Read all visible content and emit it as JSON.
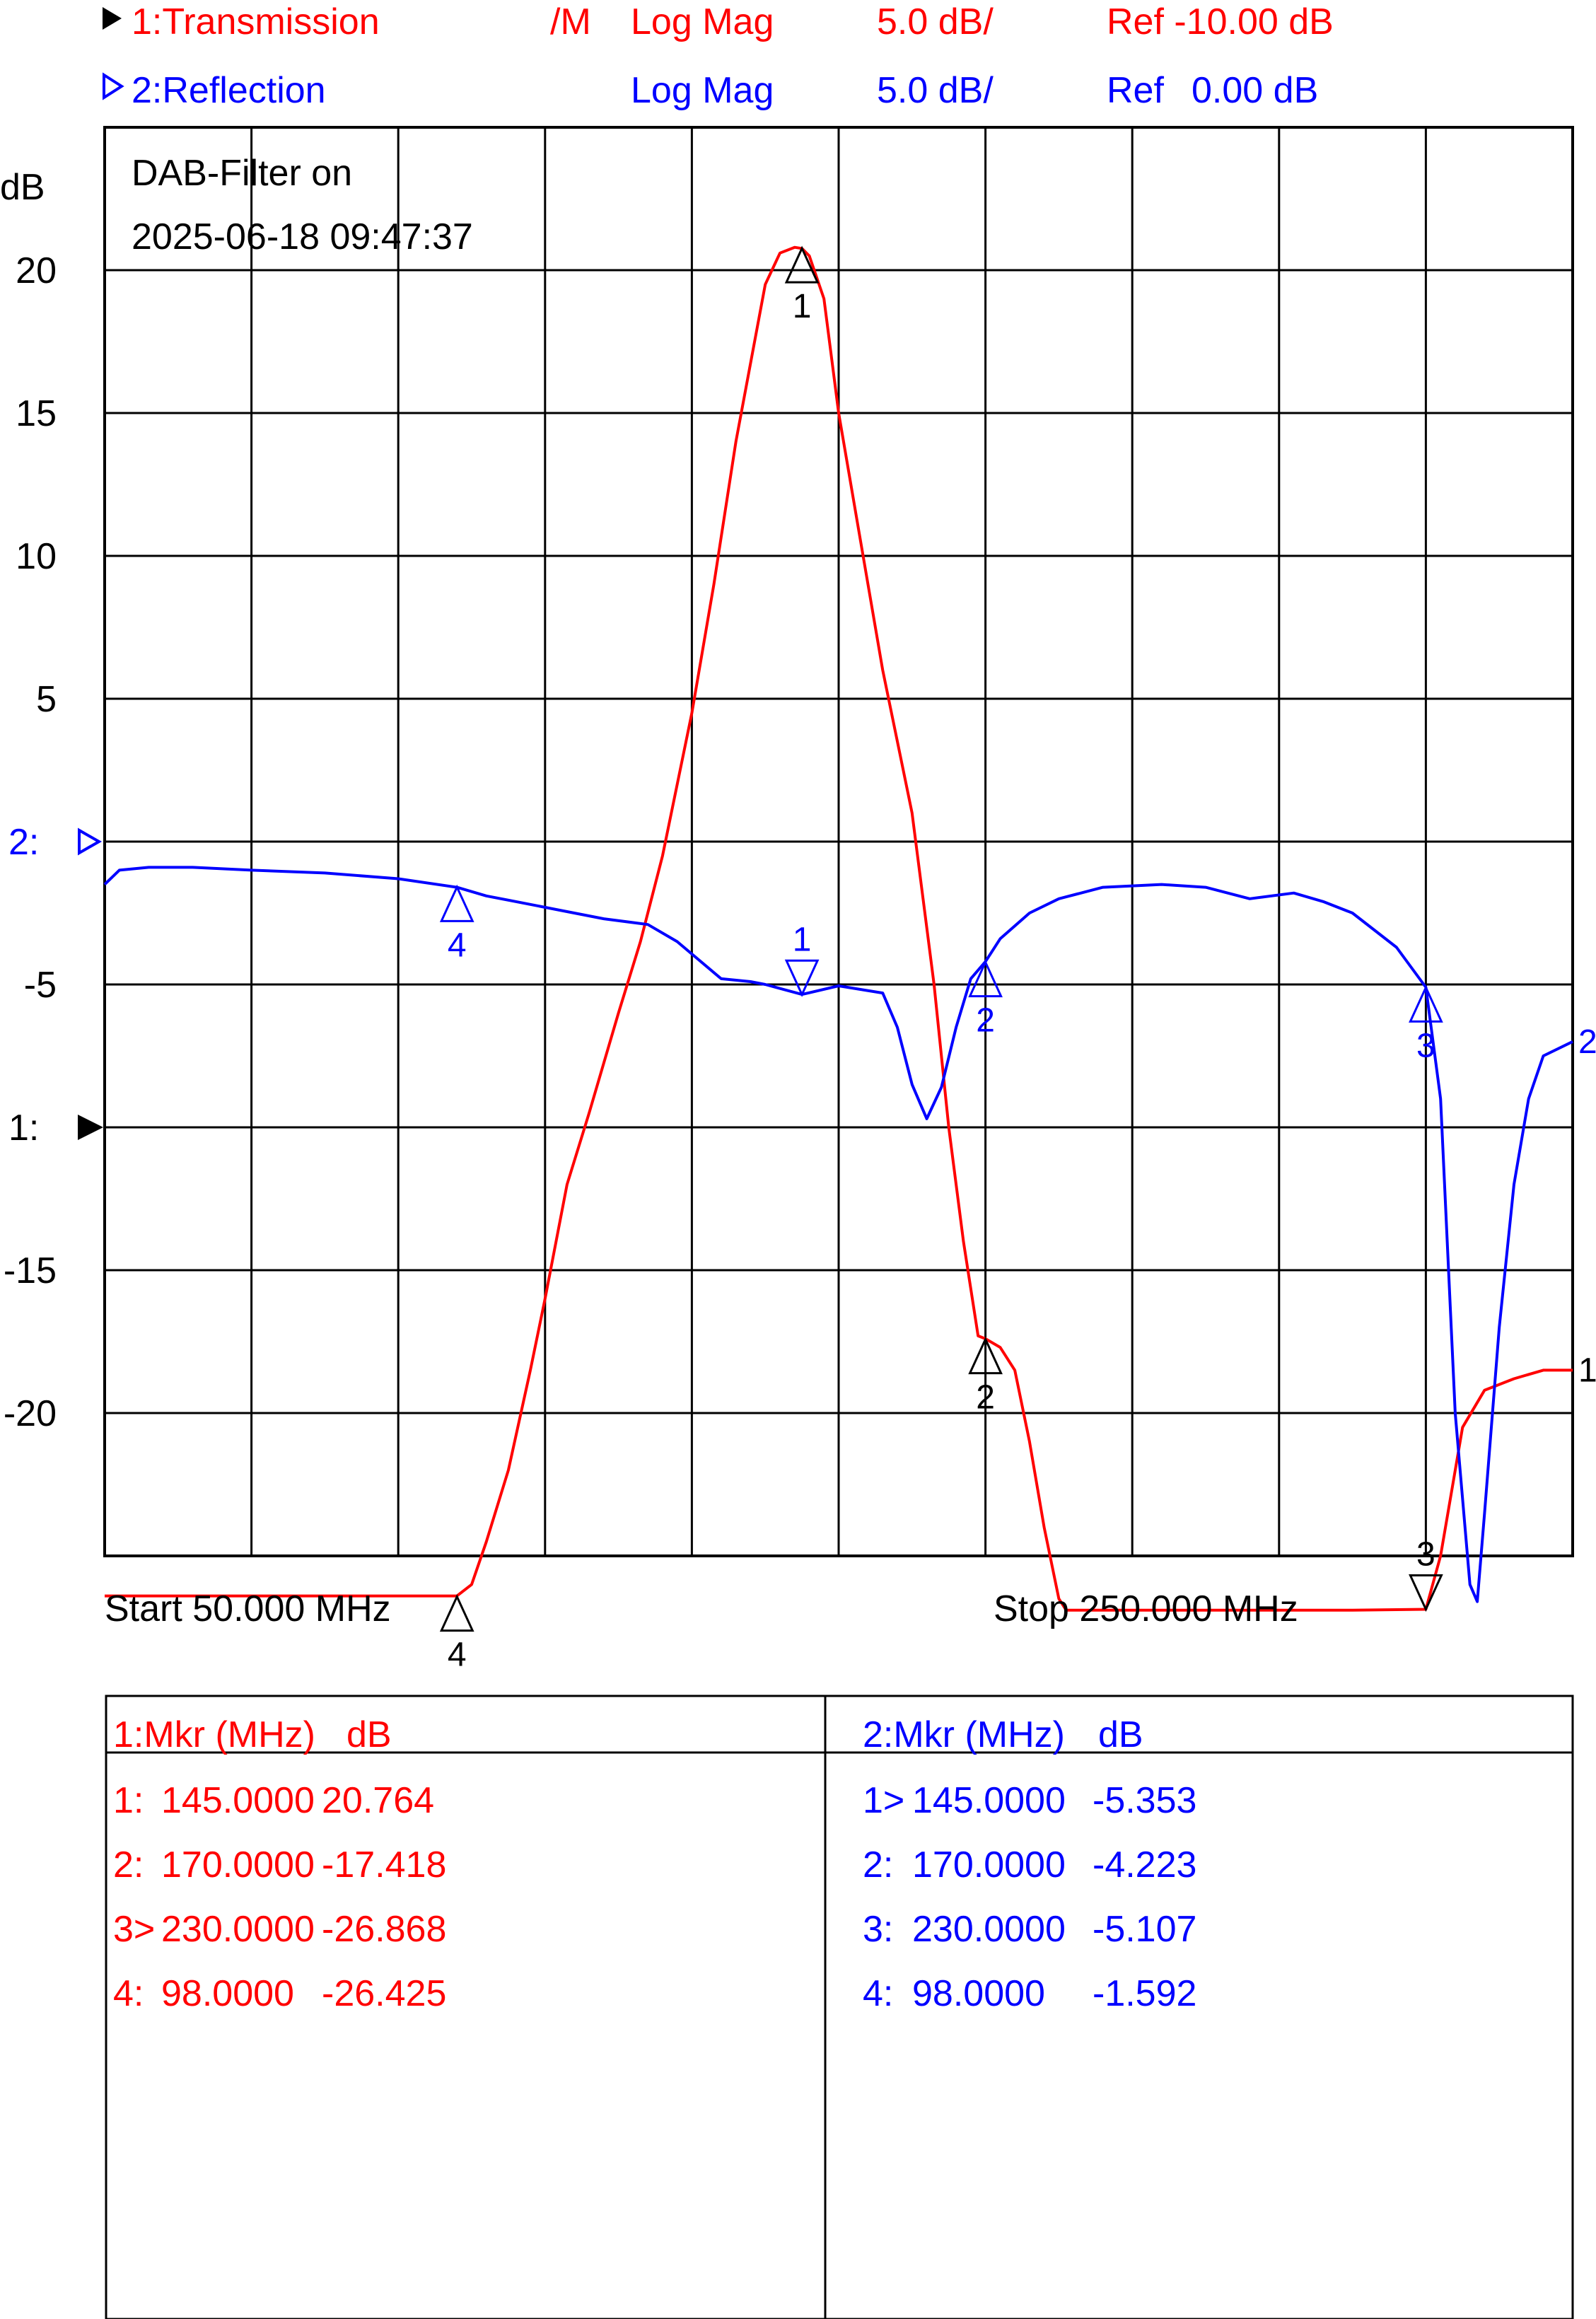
{
  "header": {
    "trace1": {
      "label": "1:Transmission",
      "flag": "/M",
      "format": "Log Mag",
      "scale": "5.0 dB/",
      "ref": "Ref -10.00 dB"
    },
    "trace2": {
      "label": "2:Reflection",
      "format": "Log Mag",
      "scale": "5.0 dB/",
      "ref_prefix": "Ref",
      "ref_value": "0.00 dB"
    }
  },
  "annotation": {
    "line1": "DAB-Filter on",
    "line2": "2025-06-18 09:47:37"
  },
  "start_label": "Start 50.000 MHz",
  "stop_label": "Stop 250.000 MHz",
  "colors": {
    "trace1": "#ff0000",
    "trace2": "#0000ff",
    "grid": "#000000"
  },
  "marker_table": {
    "trace1": {
      "header_mkr": "1:Mkr (MHz)",
      "header_unit": "dB",
      "rows": [
        {
          "id": "1:",
          "freq": "145.0000",
          "value": "20.764"
        },
        {
          "id": "2:",
          "freq": "170.0000",
          "value": "-17.418"
        },
        {
          "id": "3>",
          "freq": "230.0000",
          "value": "-26.868"
        },
        {
          "id": "4:",
          "freq": "98.0000",
          "value": "-26.425"
        }
      ]
    },
    "trace2": {
      "header_mkr": "2:Mkr (MHz)",
      "header_unit": "dB",
      "rows": [
        {
          "id": "1>",
          "freq": "145.0000",
          "value": "-5.353"
        },
        {
          "id": "2:",
          "freq": "170.0000",
          "value": "-4.223"
        },
        {
          "id": "3:",
          "freq": "230.0000",
          "value": "-5.107"
        },
        {
          "id": "4:",
          "freq": "98.0000",
          "value": "-1.592"
        }
      ]
    }
  },
  "chart_data": {
    "type": "line",
    "xlim": [
      50,
      250
    ],
    "ylim": [
      -25,
      25
    ],
    "grid": true,
    "ylabel": "dB",
    "yticks": [
      {
        "value": 20,
        "label": "20"
      },
      {
        "value": 15,
        "label": "15"
      },
      {
        "value": 10,
        "label": "10"
      },
      {
        "value": 5,
        "label": "5"
      },
      {
        "value": -5,
        "label": "-5"
      },
      {
        "value": -15,
        "label": "-15"
      },
      {
        "value": -20,
        "label": "-20"
      }
    ],
    "ref_labels": [
      {
        "trace": "trace2",
        "label": "2:",
        "value": 0
      },
      {
        "trace": "trace1",
        "label": "1:",
        "value": -10
      }
    ],
    "series": [
      {
        "name": "1:Transmission",
        "color": "#ff0000",
        "x": [
          50,
          98,
          100,
          102,
          105,
          108,
          110,
          113,
          116,
          120,
          123,
          126,
          130,
          133,
          136,
          140,
          142,
          144,
          145,
          146,
          148,
          150,
          153,
          156,
          160,
          163,
          165,
          167,
          169,
          170,
          172,
          174,
          176,
          178,
          180,
          181,
          190,
          200,
          210,
          220,
          230,
          232,
          235,
          238,
          242,
          246,
          250
        ],
        "y": [
          -26.4,
          -26.4,
          -26,
          -24.5,
          -22,
          -18.5,
          -16,
          -12,
          -9.5,
          -6,
          -3.5,
          -0.5,
          4.5,
          9,
          14,
          19.5,
          20.6,
          20.8,
          20.76,
          20.5,
          19,
          15,
          10.5,
          6,
          1,
          -5,
          -10,
          -14,
          -17.3,
          -17.4,
          -17.7,
          -18.5,
          -21,
          -24,
          -26.5,
          -26.9,
          -26.9,
          -26.9,
          -26.9,
          -26.9,
          -26.87,
          -25,
          -20.5,
          -19.2,
          -18.8,
          -18.5,
          -18.5
        ]
      },
      {
        "name": "2:Reflection",
        "color": "#0000ff",
        "x": [
          50,
          52,
          56,
          62,
          70,
          80,
          90,
          98,
          102,
          106,
          112,
          118,
          124,
          128,
          134,
          138,
          140,
          145,
          150,
          156,
          158,
          160,
          162,
          164,
          166,
          168,
          170,
          172,
          176,
          180,
          186,
          194,
          200,
          206,
          212,
          216,
          220,
          226,
          230,
          232,
          234,
          236,
          237,
          238,
          240,
          242,
          244,
          246,
          250
        ],
        "y": [
          -1.5,
          -1.0,
          -0.9,
          -0.9,
          -1.0,
          -1.1,
          -1.3,
          -1.6,
          -1.9,
          -2.1,
          -2.4,
          -2.7,
          -2.9,
          -3.5,
          -4.8,
          -4.9,
          -5.0,
          -5.35,
          -5.05,
          -5.3,
          -6.5,
          -8.5,
          -9.7,
          -8.6,
          -6.5,
          -4.8,
          -4.2,
          -3.4,
          -2.5,
          -2.0,
          -1.6,
          -1.5,
          -1.6,
          -2.0,
          -1.8,
          -2.1,
          -2.5,
          -3.7,
          -5.1,
          -9.0,
          -20.0,
          -26.0,
          -26.6,
          -23.5,
          -17.0,
          -12.0,
          -9.0,
          -7.5,
          -7.0
        ]
      }
    ],
    "markers": [
      {
        "trace": 0,
        "id": "1",
        "x": 145,
        "y": 20.764,
        "dir": "up",
        "label_pos": "below"
      },
      {
        "trace": 0,
        "id": "2",
        "x": 170,
        "y": -17.418,
        "dir": "up",
        "label_pos": "below"
      },
      {
        "trace": 0,
        "id": "3",
        "x": 230,
        "y": -26.868,
        "dir": "down",
        "label_pos": "above"
      },
      {
        "trace": 0,
        "id": "4",
        "x": 98,
        "y": -26.425,
        "dir": "up",
        "label_pos": "below"
      },
      {
        "trace": 1,
        "id": "1",
        "x": 145,
        "y": -5.353,
        "dir": "down",
        "label_pos": "above"
      },
      {
        "trace": 1,
        "id": "2",
        "x": 170,
        "y": -4.223,
        "dir": "up",
        "label_pos": "below"
      },
      {
        "trace": 1,
        "id": "3",
        "x": 230,
        "y": -5.107,
        "dir": "up",
        "label_pos": "below"
      },
      {
        "trace": 1,
        "id": "4",
        "x": 98,
        "y": -1.592,
        "dir": "up",
        "label_pos": "below"
      }
    ],
    "trace_end_labels": [
      {
        "trace": 1,
        "label": "2"
      },
      {
        "trace": 0,
        "label": "1"
      }
    ]
  }
}
